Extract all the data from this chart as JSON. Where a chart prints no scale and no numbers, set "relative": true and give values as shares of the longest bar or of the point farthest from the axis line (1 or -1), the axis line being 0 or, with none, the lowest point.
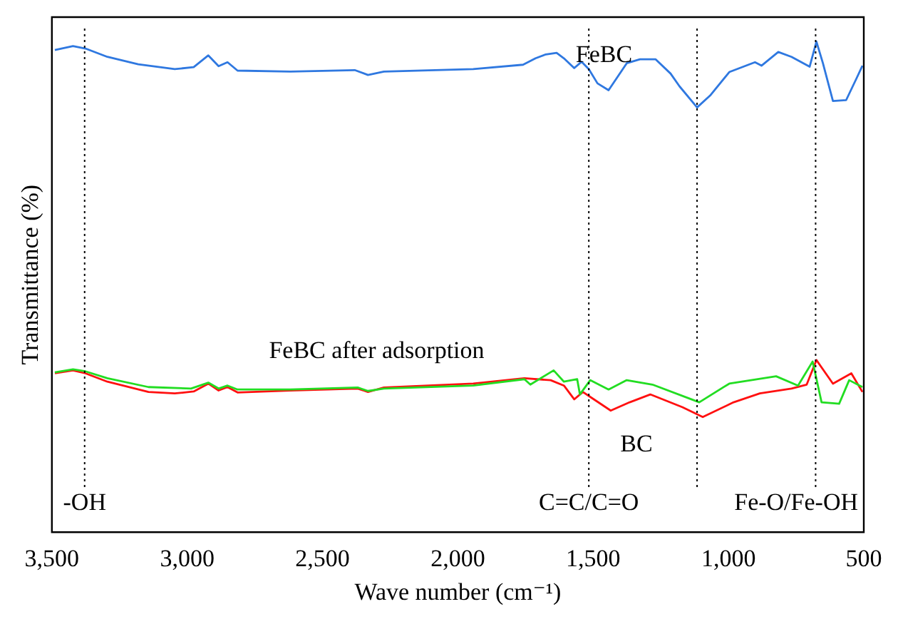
{
  "chart_data": {
    "type": "line",
    "relative": true,
    "xlabel": "Wave number (cm⁻¹)",
    "ylabel": "Transmittance (%)",
    "xlim": [
      3500,
      500
    ],
    "xticks": [
      {
        "value": 3500,
        "label": "3,500"
      },
      {
        "value": 3000,
        "label": "3,000"
      },
      {
        "value": 2500,
        "label": "2,500"
      },
      {
        "value": 2000,
        "label": "2,000"
      },
      {
        "value": 1500,
        "label": "1,500"
      },
      {
        "value": 1000,
        "label": "1,000"
      },
      500
    ],
    "grid": false,
    "legend": false,
    "marker": "none",
    "line_style": "solid",
    "series": [
      {
        "name": "FeBC",
        "color": "#2f78e0",
        "x": [
          3489,
          3422,
          3376,
          3295,
          3181,
          3046,
          2976,
          2922,
          2884,
          2851,
          2814,
          2619,
          2381,
          2332,
          2273,
          1943,
          1759,
          1713,
          1675,
          1635,
          1608,
          1570,
          1543,
          1516,
          1484,
          1443,
          1376,
          1327,
          1269,
          1214,
          1181,
          1116,
          1068,
          997,
          902,
          878,
          816,
          767,
          700,
          675,
          651,
          614,
          565,
          527,
          505
        ],
        "values": [
          0.983,
          0.991,
          0.986,
          0.969,
          0.954,
          0.944,
          0.948,
          0.972,
          0.95,
          0.958,
          0.941,
          0.939,
          0.942,
          0.932,
          0.939,
          0.944,
          0.953,
          0.966,
          0.974,
          0.977,
          0.966,
          0.946,
          0.959,
          0.944,
          0.915,
          0.901,
          0.956,
          0.964,
          0.964,
          0.935,
          0.909,
          0.866,
          0.89,
          0.938,
          0.958,
          0.951,
          0.979,
          0.969,
          0.949,
          1,
          0.956,
          0.879,
          0.881,
          0.925,
          0.951
        ]
      },
      {
        "name": "FeBC after adsorption",
        "color": "#22dd22",
        "x": [
          3489,
          3422,
          3376,
          3295,
          3143,
          2986,
          2922,
          2884,
          2851,
          2814,
          2619,
          2370,
          2332,
          2273,
          1943,
          1754,
          1732,
          1646,
          1608,
          1559,
          1549,
          1511,
          1443,
          1376,
          1281,
          1146,
          1108,
          997,
          824,
          743,
          689,
          656,
          591,
          554,
          505
        ],
        "values": [
          0.326,
          0.332,
          0.328,
          0.314,
          0.296,
          0.293,
          0.305,
          0.293,
          0.299,
          0.291,
          0.291,
          0.295,
          0.288,
          0.293,
          0.299,
          0.312,
          0.301,
          0.33,
          0.307,
          0.312,
          0.281,
          0.31,
          0.291,
          0.31,
          0.301,
          0.273,
          0.265,
          0.303,
          0.318,
          0.299,
          0.348,
          0.265,
          0.262,
          0.31,
          0.296
        ]
      },
      {
        "name": "BC",
        "color": "#ff1010",
        "x": [
          3489,
          3422,
          3376,
          3295,
          3143,
          3046,
          2976,
          2922,
          2884,
          2851,
          2814,
          2619,
          2370,
          2332,
          2273,
          1943,
          1754,
          1657,
          1608,
          1570,
          1538,
          1511,
          1435,
          1365,
          1289,
          1170,
          1095,
          981,
          884,
          767,
          711,
          675,
          614,
          546,
          505
        ],
        "values": [
          0.324,
          0.33,
          0.324,
          0.307,
          0.286,
          0.283,
          0.287,
          0.303,
          0.289,
          0.296,
          0.285,
          0.289,
          0.293,
          0.286,
          0.295,
          0.303,
          0.314,
          0.31,
          0.299,
          0.271,
          0.286,
          0.276,
          0.248,
          0.265,
          0.281,
          0.255,
          0.235,
          0.265,
          0.283,
          0.293,
          0.301,
          0.351,
          0.303,
          0.324,
          0.286
        ]
      }
    ],
    "ref_lines": [
      {
        "axis": "x",
        "value": 3379,
        "label": "-OH",
        "line_style": "dotted",
        "color": "#000000"
      },
      {
        "axis": "x",
        "value": 1516,
        "label": "C=C/C=O",
        "line_style": "dotted",
        "color": "#000000"
      },
      {
        "axis": "x",
        "value": 1116,
        "line_style": "dotted",
        "color": "#000000"
      },
      {
        "axis": "x",
        "value": 678,
        "label": "Fe-O/Fe-OH",
        "line_style": "dotted",
        "color": "#000000"
      }
    ]
  }
}
